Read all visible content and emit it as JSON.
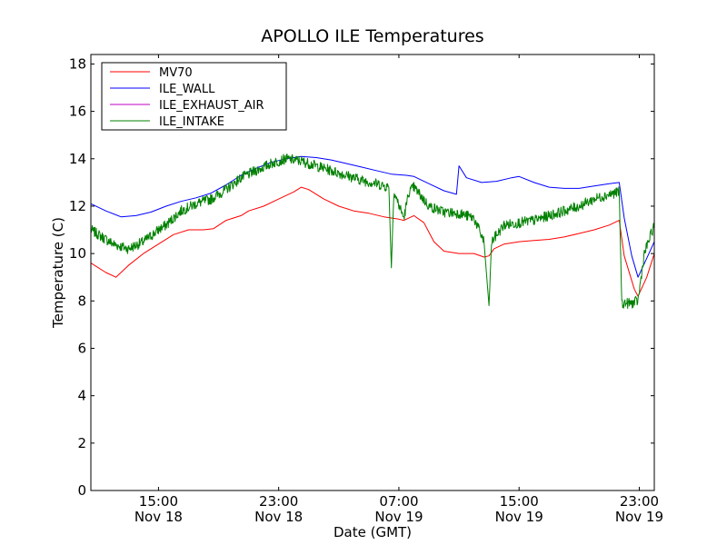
{
  "chart_data": {
    "type": "line",
    "title": "APOLLO ILE Temperatures",
    "xlabel": "Date (GMT)",
    "ylabel": "Temperature (C)",
    "xlim": [
      "2013-11-18T10:30",
      "2013-11-20T00:00"
    ],
    "ylim": [
      0,
      18.4
    ],
    "yticks": [
      0,
      2,
      4,
      6,
      8,
      10,
      12,
      14,
      16,
      18
    ],
    "xticks": [
      {
        "t": "2013-11-18T15:00",
        "time": "15:00",
        "date": "Nov 18"
      },
      {
        "t": "2013-11-18T23:00",
        "time": "23:00",
        "date": "Nov 18"
      },
      {
        "t": "2013-11-19T07:00",
        "time": "07:00",
        "date": "Nov 19"
      },
      {
        "t": "2013-11-19T15:00",
        "time": "15:00",
        "date": "Nov 19"
      },
      {
        "t": "2013-11-19T23:00",
        "time": "23:00",
        "date": "Nov 19"
      }
    ],
    "grid": false,
    "legend_position": "top-left",
    "series": [
      {
        "name": "MV70",
        "color": "#ff0000",
        "points": [
          [
            "2013-11-18T10:30",
            9.6
          ],
          [
            "2013-11-18T11:30",
            9.2
          ],
          [
            "2013-11-18T12:10",
            9.0
          ],
          [
            "2013-11-18T13:00",
            9.5
          ],
          [
            "2013-11-18T14:00",
            10.0
          ],
          [
            "2013-11-18T15:00",
            10.4
          ],
          [
            "2013-11-18T16:00",
            10.8
          ],
          [
            "2013-11-18T17:00",
            11.0
          ],
          [
            "2013-11-18T18:00",
            11.0
          ],
          [
            "2013-11-18T18:40",
            11.05
          ],
          [
            "2013-11-18T19:30",
            11.4
          ],
          [
            "2013-11-18T20:30",
            11.6
          ],
          [
            "2013-11-18T21:00",
            11.8
          ],
          [
            "2013-11-18T22:00",
            12.0
          ],
          [
            "2013-11-18T23:00",
            12.3
          ],
          [
            "2013-11-19T00:00",
            12.6
          ],
          [
            "2013-11-19T00:30",
            12.8
          ],
          [
            "2013-11-19T01:00",
            12.7
          ],
          [
            "2013-11-19T02:00",
            12.3
          ],
          [
            "2013-11-19T03:00",
            12.0
          ],
          [
            "2013-11-19T04:00",
            11.8
          ],
          [
            "2013-11-19T05:00",
            11.7
          ],
          [
            "2013-11-19T06:00",
            11.55
          ],
          [
            "2013-11-19T07:00",
            11.45
          ],
          [
            "2013-11-19T07:20",
            11.4
          ],
          [
            "2013-11-19T08:00",
            11.6
          ],
          [
            "2013-11-19T08:40",
            11.3
          ],
          [
            "2013-11-19T09:20",
            10.5
          ],
          [
            "2013-11-19T10:00",
            10.1
          ],
          [
            "2013-11-19T11:00",
            10.0
          ],
          [
            "2013-11-19T12:00",
            10.0
          ],
          [
            "2013-11-19T12:40",
            9.85
          ],
          [
            "2013-11-19T13:00",
            9.9
          ],
          [
            "2013-11-19T13:20",
            10.2
          ],
          [
            "2013-11-19T14:00",
            10.4
          ],
          [
            "2013-11-19T15:00",
            10.5
          ],
          [
            "2013-11-19T16:00",
            10.55
          ],
          [
            "2013-11-19T17:00",
            10.6
          ],
          [
            "2013-11-19T18:00",
            10.7
          ],
          [
            "2013-11-19T19:00",
            10.85
          ],
          [
            "2013-11-19T20:00",
            11.0
          ],
          [
            "2013-11-19T21:00",
            11.2
          ],
          [
            "2013-11-19T21:40",
            11.4
          ],
          [
            "2013-11-19T22:00",
            9.9
          ],
          [
            "2013-11-19T22:40",
            8.5
          ],
          [
            "2013-11-19T22:55",
            8.2
          ],
          [
            "2013-11-19T23:30",
            9.0
          ],
          [
            "2013-11-20T00:00",
            10.0
          ]
        ]
      },
      {
        "name": "ILE_WALL",
        "color": "#0000ff",
        "points": [
          [
            "2013-11-18T10:30",
            12.1
          ],
          [
            "2013-11-18T11:30",
            11.8
          ],
          [
            "2013-11-18T12:30",
            11.55
          ],
          [
            "2013-11-18T13:30",
            11.6
          ],
          [
            "2013-11-18T14:30",
            11.75
          ],
          [
            "2013-11-18T15:30",
            12.0
          ],
          [
            "2013-11-18T16:30",
            12.2
          ],
          [
            "2013-11-18T17:30",
            12.35
          ],
          [
            "2013-11-18T18:30",
            12.55
          ],
          [
            "2013-11-18T19:30",
            12.9
          ],
          [
            "2013-11-18T20:30",
            13.3
          ],
          [
            "2013-11-18T21:30",
            13.6
          ],
          [
            "2013-11-18T22:30",
            13.85
          ],
          [
            "2013-11-18T23:30",
            14.0
          ],
          [
            "2013-11-19T00:30",
            14.1
          ],
          [
            "2013-11-19T01:30",
            14.05
          ],
          [
            "2013-11-19T02:30",
            13.95
          ],
          [
            "2013-11-19T03:30",
            13.8
          ],
          [
            "2013-11-19T04:30",
            13.65
          ],
          [
            "2013-11-19T05:30",
            13.5
          ],
          [
            "2013-11-19T06:30",
            13.35
          ],
          [
            "2013-11-19T07:30",
            13.3
          ],
          [
            "2013-11-19T08:00",
            13.25
          ],
          [
            "2013-11-19T09:00",
            12.95
          ],
          [
            "2013-11-19T10:00",
            12.65
          ],
          [
            "2013-11-19T10:50",
            12.5
          ],
          [
            "2013-11-19T11:00",
            13.7
          ],
          [
            "2013-11-19T11:30",
            13.2
          ],
          [
            "2013-11-19T12:30",
            13.0
          ],
          [
            "2013-11-19T13:30",
            13.05
          ],
          [
            "2013-11-19T14:30",
            13.2
          ],
          [
            "2013-11-19T15:00",
            13.25
          ],
          [
            "2013-11-19T16:00",
            13.0
          ],
          [
            "2013-11-19T17:00",
            12.8
          ],
          [
            "2013-11-19T18:00",
            12.75
          ],
          [
            "2013-11-19T19:00",
            12.75
          ],
          [
            "2013-11-19T20:00",
            12.85
          ],
          [
            "2013-11-19T21:00",
            12.95
          ],
          [
            "2013-11-19T21:40",
            13.0
          ],
          [
            "2013-11-19T22:00",
            11.5
          ],
          [
            "2013-11-19T22:30",
            9.9
          ],
          [
            "2013-11-19T22:55",
            9.0
          ],
          [
            "2013-11-19T23:30",
            9.8
          ],
          [
            "2013-11-20T00:00",
            10.5
          ]
        ]
      },
      {
        "name": "ILE_EXHAUST_AIR",
        "color": "#bf00bf",
        "points": []
      },
      {
        "name": "ILE_INTAKE",
        "color": "#008000",
        "points": [
          [
            "2013-11-18T10:30",
            11.0
          ],
          [
            "2013-11-18T11:30",
            10.6
          ],
          [
            "2013-11-18T12:00",
            10.4
          ],
          [
            "2013-11-18T13:00",
            10.2
          ],
          [
            "2013-11-18T14:00",
            10.5
          ],
          [
            "2013-11-18T15:00",
            11.0
          ],
          [
            "2013-11-18T15:30",
            11.2
          ],
          [
            "2013-11-18T16:30",
            11.8
          ],
          [
            "2013-11-18T17:30",
            12.1
          ],
          [
            "2013-11-18T18:30",
            12.3
          ],
          [
            "2013-11-18T19:30",
            12.7
          ],
          [
            "2013-11-18T20:30",
            13.2
          ],
          [
            "2013-11-18T21:30",
            13.5
          ],
          [
            "2013-11-18T22:30",
            13.8
          ],
          [
            "2013-11-18T23:30",
            14.0
          ],
          [
            "2013-11-19T00:30",
            13.9
          ],
          [
            "2013-11-19T01:30",
            13.7
          ],
          [
            "2013-11-19T02:30",
            13.5
          ],
          [
            "2013-11-19T03:30",
            13.3
          ],
          [
            "2013-11-19T04:30",
            13.1
          ],
          [
            "2013-11-19T05:30",
            12.95
          ],
          [
            "2013-11-19T06:20",
            12.8
          ],
          [
            "2013-11-19T06:30",
            9.4
          ],
          [
            "2013-11-19T06:40",
            12.6
          ],
          [
            "2013-11-19T07:20",
            11.5
          ],
          [
            "2013-11-19T07:40",
            12.6
          ],
          [
            "2013-11-19T08:00",
            12.8
          ],
          [
            "2013-11-19T09:00",
            12.0
          ],
          [
            "2013-11-19T10:00",
            11.75
          ],
          [
            "2013-11-19T11:00",
            11.7
          ],
          [
            "2013-11-19T12:00",
            11.5
          ],
          [
            "2013-11-19T12:40",
            10.5
          ],
          [
            "2013-11-19T13:00",
            7.8
          ],
          [
            "2013-11-19T13:10",
            10.5
          ],
          [
            "2013-11-19T14:00",
            11.2
          ],
          [
            "2013-11-19T15:00",
            11.3
          ],
          [
            "2013-11-19T16:00",
            11.4
          ],
          [
            "2013-11-19T17:00",
            11.6
          ],
          [
            "2013-11-19T18:00",
            11.8
          ],
          [
            "2013-11-19T19:00",
            12.0
          ],
          [
            "2013-11-19T20:00",
            12.3
          ],
          [
            "2013-11-19T21:00",
            12.5
          ],
          [
            "2013-11-19T21:40",
            12.6
          ],
          [
            "2013-11-19T21:50",
            7.9
          ],
          [
            "2013-11-19T22:30",
            7.9
          ],
          [
            "2013-11-19T22:55",
            8.0
          ],
          [
            "2013-11-19T23:20",
            10.0
          ],
          [
            "2013-11-20T00:00",
            11.2
          ]
        ]
      }
    ]
  }
}
